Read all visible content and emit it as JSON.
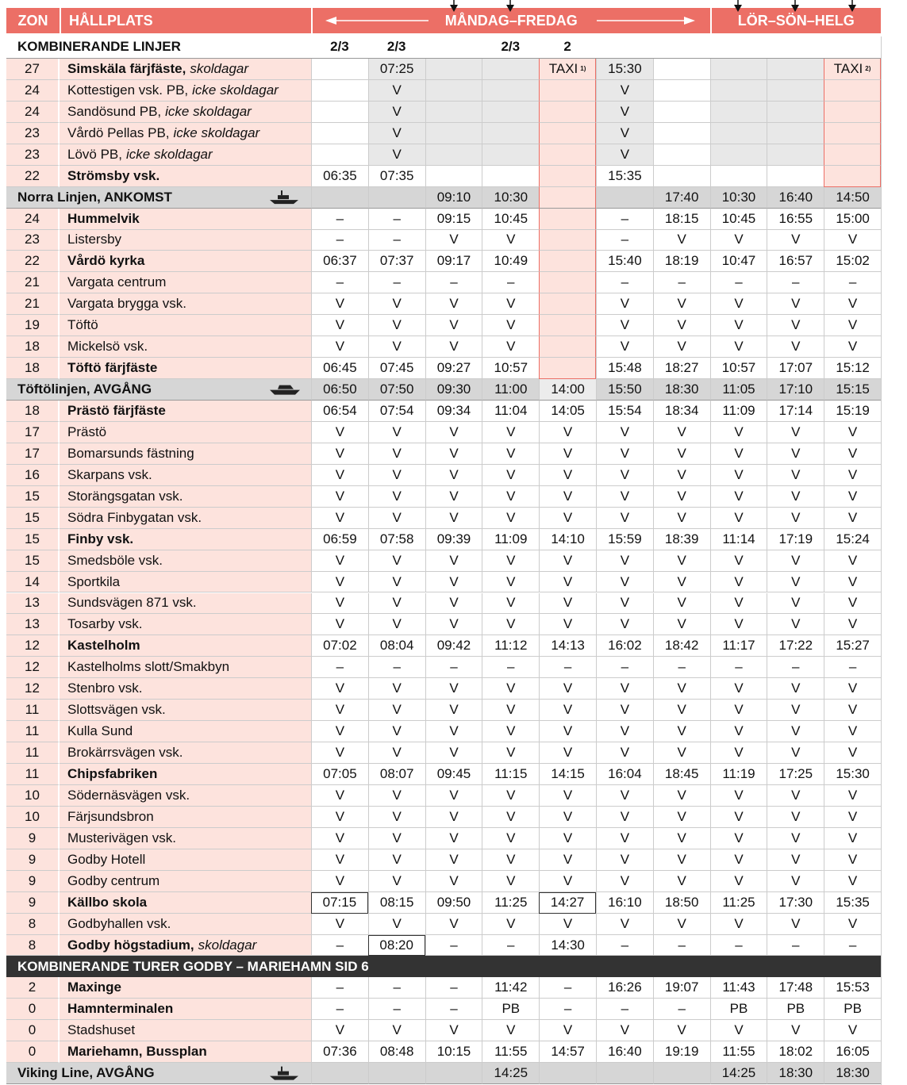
{
  "header": {
    "zon": "ZON",
    "stop": "HÅLLPLATS",
    "weekdays": "MÅNDAG–FREDAG",
    "weekend": "LÖR–SÖN–HELG"
  },
  "combined": {
    "label": "KOMBINERANDE LINJER",
    "lines": [
      "2/3",
      "2/3",
      null,
      "2/3",
      "2",
      null,
      null,
      null,
      null,
      null
    ]
  },
  "rows": [
    {
      "zon": "27",
      "stop": "Simskäla färjfäste,",
      "note": "skoldagar",
      "bold": true,
      "times": [
        null,
        "07:25",
        null,
        null,
        {
          "text": "TAXI",
          "sup": "1)"
        },
        "15:30",
        null,
        null,
        null,
        {
          "text": "TAXI",
          "sup": "2)"
        }
      ]
    },
    {
      "zon": "24",
      "stop": "Kottestigen vsk. PB,",
      "note": "icke skoldagar",
      "times": [
        null,
        "V",
        null,
        null,
        null,
        "V",
        null,
        null,
        null,
        null
      ]
    },
    {
      "zon": "24",
      "stop": "Sandösund PB,",
      "note": "icke skoldagar",
      "times": [
        null,
        "V",
        null,
        null,
        null,
        "V",
        null,
        null,
        null,
        null
      ]
    },
    {
      "zon": "23",
      "stop": "Vårdö Pellas PB,",
      "note": "icke skoldagar",
      "times": [
        null,
        "V",
        null,
        null,
        null,
        "V",
        null,
        null,
        null,
        null
      ]
    },
    {
      "zon": "23",
      "stop": "Lövö PB,",
      "note": "icke skoldagar",
      "times": [
        null,
        "V",
        null,
        null,
        null,
        "V",
        null,
        null,
        null,
        null
      ]
    },
    {
      "zon": "22",
      "stop": "Strömsby vsk.",
      "bold": true,
      "times": [
        "06:35",
        "07:35",
        null,
        null,
        null,
        "15:35",
        null,
        null,
        null,
        null
      ]
    },
    {
      "section": "Norra Linjen, ANKOMST",
      "icon": "ferry",
      "times": [
        null,
        null,
        "09:10",
        "10:30",
        null,
        null,
        "17:40",
        "10:30",
        "16:40",
        "14:50"
      ]
    },
    {
      "zon": "24",
      "stop": "Hummelvik",
      "bold": true,
      "times": [
        "–",
        "–",
        "09:15",
        "10:45",
        null,
        "–",
        "18:15",
        "10:45",
        "16:55",
        "15:00"
      ]
    },
    {
      "zon": "23",
      "stop": "Listersby",
      "times": [
        "–",
        "–",
        "V",
        "V",
        null,
        "–",
        "V",
        "V",
        "V",
        "V"
      ]
    },
    {
      "zon": "22",
      "stop": "Vårdö kyrka",
      "bold": true,
      "times": [
        "06:37",
        "07:37",
        "09:17",
        "10:49",
        null,
        "15:40",
        "18:19",
        "10:47",
        "16:57",
        "15:02"
      ]
    },
    {
      "zon": "21",
      "stop": "Vargata centrum",
      "times": [
        "–",
        "–",
        "–",
        "–",
        null,
        "–",
        "–",
        "–",
        "–",
        "–"
      ]
    },
    {
      "zon": "21",
      "stop": "Vargata brygga vsk.",
      "times": [
        "V",
        "V",
        "V",
        "V",
        null,
        "V",
        "V",
        "V",
        "V",
        "V"
      ]
    },
    {
      "zon": "19",
      "stop": "Töftö",
      "times": [
        "V",
        "V",
        "V",
        "V",
        null,
        "V",
        "V",
        "V",
        "V",
        "V"
      ]
    },
    {
      "zon": "18",
      "stop": "Mickelsö vsk.",
      "times": [
        "V",
        "V",
        "V",
        "V",
        null,
        "V",
        "V",
        "V",
        "V",
        "V"
      ]
    },
    {
      "zon": "18",
      "stop": "Töftö färjfäste",
      "bold": true,
      "times": [
        "06:45",
        "07:45",
        "09:27",
        "10:57",
        null,
        "15:48",
        "18:27",
        "10:57",
        "17:07",
        "15:12"
      ]
    },
    {
      "section": "Töftölinjen, AVGÅNG",
      "icon": "carferry",
      "times": [
        "06:50",
        "07:50",
        "09:30",
        "11:00",
        "14:00",
        "15:50",
        "18:30",
        "11:05",
        "17:10",
        "15:15"
      ]
    },
    {
      "zon": "18",
      "stop": "Prästö färjfäste",
      "bold": true,
      "times": [
        "06:54",
        "07:54",
        "09:34",
        "11:04",
        "14:05",
        "15:54",
        "18:34",
        "11:09",
        "17:14",
        "15:19"
      ]
    },
    {
      "zon": "17",
      "stop": "Prästö",
      "times": [
        "V",
        "V",
        "V",
        "V",
        "V",
        "V",
        "V",
        "V",
        "V",
        "V"
      ]
    },
    {
      "zon": "17",
      "stop": "Bomarsunds fästning",
      "times": [
        "V",
        "V",
        "V",
        "V",
        "V",
        "V",
        "V",
        "V",
        "V",
        "V"
      ]
    },
    {
      "zon": "16",
      "stop": "Skarpans vsk.",
      "times": [
        "V",
        "V",
        "V",
        "V",
        "V",
        "V",
        "V",
        "V",
        "V",
        "V"
      ]
    },
    {
      "zon": "15",
      "stop": "Storängsgatan vsk.",
      "times": [
        "V",
        "V",
        "V",
        "V",
        "V",
        "V",
        "V",
        "V",
        "V",
        "V"
      ]
    },
    {
      "zon": "15",
      "stop": "Södra Finbygatan vsk.",
      "times": [
        "V",
        "V",
        "V",
        "V",
        "V",
        "V",
        "V",
        "V",
        "V",
        "V"
      ]
    },
    {
      "zon": "15",
      "stop": "Finby vsk.",
      "bold": true,
      "times": [
        "06:59",
        "07:58",
        "09:39",
        "11:09",
        "14:10",
        "15:59",
        "18:39",
        "11:14",
        "17:19",
        "15:24"
      ]
    },
    {
      "zon": "15",
      "stop": "Smedsböle vsk.",
      "times": [
        "V",
        "V",
        "V",
        "V",
        "V",
        "V",
        "V",
        "V",
        "V",
        "V"
      ]
    },
    {
      "zon": "14",
      "stop": "Sportkila",
      "times": [
        "V",
        "V",
        "V",
        "V",
        "V",
        "V",
        "V",
        "V",
        "V",
        "V"
      ]
    },
    {
      "zon": "13",
      "stop": "Sundsvägen 871 vsk.",
      "times": [
        "V",
        "V",
        "V",
        "V",
        "V",
        "V",
        "V",
        "V",
        "V",
        "V"
      ]
    },
    {
      "zon": "13",
      "stop": "Tosarby vsk.",
      "times": [
        "V",
        "V",
        "V",
        "V",
        "V",
        "V",
        "V",
        "V",
        "V",
        "V"
      ]
    },
    {
      "zon": "12",
      "stop": "Kastelholm",
      "bold": true,
      "times": [
        "07:02",
        "08:04",
        "09:42",
        "11:12",
        "14:13",
        "16:02",
        "18:42",
        "11:17",
        "17:22",
        "15:27"
      ]
    },
    {
      "zon": "12",
      "stop": "Kastelholms slott/Smakbyn",
      "times": [
        "–",
        "–",
        "–",
        "–",
        "–",
        "–",
        "–",
        "–",
        "–",
        "–"
      ]
    },
    {
      "zon": "12",
      "stop": "Stenbro vsk.",
      "times": [
        "V",
        "V",
        "V",
        "V",
        "V",
        "V",
        "V",
        "V",
        "V",
        "V"
      ]
    },
    {
      "zon": "11",
      "stop": "Slottsvägen vsk.",
      "times": [
        "V",
        "V",
        "V",
        "V",
        "V",
        "V",
        "V",
        "V",
        "V",
        "V"
      ]
    },
    {
      "zon": "11",
      "stop": "Kulla Sund",
      "times": [
        "V",
        "V",
        "V",
        "V",
        "V",
        "V",
        "V",
        "V",
        "V",
        "V"
      ]
    },
    {
      "zon": "11",
      "stop": "Brokärrsvägen vsk.",
      "times": [
        "V",
        "V",
        "V",
        "V",
        "V",
        "V",
        "V",
        "V",
        "V",
        "V"
      ]
    },
    {
      "zon": "11",
      "stop": "Chipsfabriken",
      "bold": true,
      "times": [
        "07:05",
        "08:07",
        "09:45",
        "11:15",
        "14:15",
        "16:04",
        "18:45",
        "11:19",
        "17:25",
        "15:30"
      ]
    },
    {
      "zon": "10",
      "stop": "Södernäsvägen vsk.",
      "times": [
        "V",
        "V",
        "V",
        "V",
        "V",
        "V",
        "V",
        "V",
        "V",
        "V"
      ]
    },
    {
      "zon": "10",
      "stop": "Färjsundsbron",
      "times": [
        "V",
        "V",
        "V",
        "V",
        "V",
        "V",
        "V",
        "V",
        "V",
        "V"
      ]
    },
    {
      "zon": "9",
      "stop": "Musterivägen vsk.",
      "times": [
        "V",
        "V",
        "V",
        "V",
        "V",
        "V",
        "V",
        "V",
        "V",
        "V"
      ]
    },
    {
      "zon": "9",
      "stop": "Godby Hotell",
      "times": [
        "V",
        "V",
        "V",
        "V",
        "V",
        "V",
        "V",
        "V",
        "V",
        "V"
      ]
    },
    {
      "zon": "9",
      "stop": "Godby centrum",
      "times": [
        "V",
        "V",
        "V",
        "V",
        "V",
        "V",
        "V",
        "V",
        "V",
        "V"
      ]
    },
    {
      "zon": "9",
      "stop": "Källbo skola",
      "bold": true,
      "times": [
        {
          "text": "07:15",
          "boxed": true
        },
        "08:15",
        "09:50",
        "11:25",
        {
          "text": "14:27",
          "boxed": true
        },
        "16:10",
        "18:50",
        "11:25",
        "17:30",
        "15:35"
      ]
    },
    {
      "zon": "8",
      "stop": "Godbyhallen vsk.",
      "times": [
        "V",
        "V",
        "V",
        "V",
        "V",
        "V",
        "V",
        "V",
        "V",
        "V"
      ]
    },
    {
      "zon": "8",
      "stop": "Godby högstadium,",
      "note": "skoldagar",
      "bold": true,
      "times": [
        "–",
        {
          "text": "08:20",
          "boxed": true
        },
        "–",
        "–",
        "14:30",
        "–",
        "–",
        "–",
        "–",
        "–"
      ]
    },
    {
      "section": "KOMBINERANDE TURER GODBY – MARIEHAMN SID 6",
      "dark": true
    },
    {
      "zon": "2",
      "stop": "Maxinge",
      "bold": true,
      "times": [
        "–",
        "–",
        "–",
        "11:42",
        "–",
        "16:26",
        "19:07",
        "11:43",
        "17:48",
        "15:53"
      ]
    },
    {
      "zon": "0",
      "stop": "Hamnterminalen",
      "bold": true,
      "times": [
        "–",
        "–",
        "–",
        "PB",
        "–",
        "–",
        "–",
        "PB",
        "PB",
        "PB"
      ]
    },
    {
      "zon": "0",
      "stop": "Stadshuset",
      "times": [
        "V",
        "V",
        "V",
        "V",
        "V",
        "V",
        "V",
        "V",
        "V",
        "V"
      ]
    },
    {
      "zon": "0",
      "stop": "Mariehamn, Bussplan",
      "bold": true,
      "times": [
        "07:36",
        "08:48",
        "10:15",
        "11:55",
        "14:57",
        "16:40",
        "19:19",
        "11:55",
        "18:02",
        "16:05"
      ]
    },
    {
      "section": "Viking Line, AVGÅNG",
      "icon": "ferry",
      "times": [
        null,
        null,
        null,
        "14:25",
        null,
        null,
        null,
        "14:25",
        "18:30",
        "18:30"
      ]
    }
  ]
}
